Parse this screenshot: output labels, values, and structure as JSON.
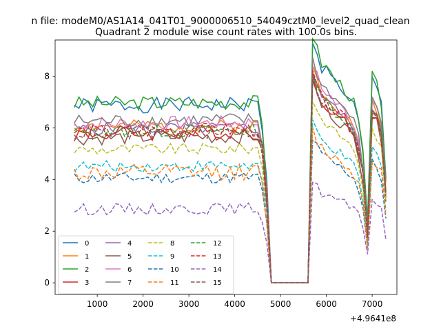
{
  "chart_data": {
    "type": "line",
    "suptitle": "n file: modeM0/AS1A14_041T01_9000006510_54049cztM0_level2_quad_clean",
    "title": "Quadrant 2 module wise count rates with 100.0s bins.",
    "xlabel": "",
    "ylabel": "",
    "x_offset_label": "+4.9641e8",
    "xlim": [
      80,
      7540
    ],
    "ylim": [
      -0.45,
      9.4
    ],
    "xticks": [
      1000,
      2000,
      3000,
      4000,
      5000,
      6000,
      7000
    ],
    "yticks": [
      0,
      2,
      4,
      6,
      8
    ],
    "grid": false,
    "legend_position": "lower-left",
    "legend_columns": 4,
    "x": [
      500,
      600,
      700,
      800,
      900,
      1000,
      1100,
      1200,
      1300,
      1400,
      1500,
      1600,
      1700,
      1800,
      1900,
      2000,
      2100,
      2200,
      2300,
      2400,
      2500,
      2600,
      2700,
      2800,
      2900,
      3000,
      3100,
      3200,
      3300,
      3400,
      3500,
      3600,
      3700,
      3800,
      3900,
      4000,
      4100,
      4200,
      4300,
      4400,
      4500,
      4600,
      4700,
      4800,
      4900,
      5000,
      5100,
      5200,
      5300,
      5400,
      5500,
      5600,
      5700,
      5800,
      5900,
      6000,
      6100,
      6200,
      6300,
      6400,
      6500,
      6600,
      6700,
      6800,
      6900,
      7000,
      7100,
      7200,
      7300
    ],
    "shapes": {
      "base": [
        1,
        1,
        1,
        1,
        1,
        1,
        1,
        1,
        1,
        1,
        1,
        1,
        1,
        1,
        1,
        1,
        1,
        1,
        1,
        1,
        1,
        1,
        1,
        1,
        1,
        1,
        1,
        1,
        1,
        1,
        1,
        1,
        1,
        1,
        1,
        1,
        1,
        1,
        1,
        1,
        1,
        0.87,
        0.55,
        0,
        0,
        0,
        0,
        0,
        0,
        0,
        0,
        0,
        1.38,
        1.3,
        1.22,
        1.2,
        1.17,
        1.13,
        1.11,
        1.08,
        1.04,
        1.0,
        0.9,
        0.72,
        0.33,
        1.15,
        1.1,
        1.0,
        0.6
      ],
      "late_scale": [
        1,
        1,
        1,
        1,
        1,
        1,
        1,
        1,
        1,
        1,
        1,
        1,
        1,
        1,
        1,
        1,
        1,
        1,
        1,
        1,
        1,
        1,
        1,
        1,
        1,
        1,
        1,
        1,
        1,
        1,
        1,
        1,
        1,
        1,
        1,
        1,
        1,
        1,
        1,
        1,
        1,
        1,
        1,
        1,
        1,
        1,
        1,
        1,
        1,
        1,
        1,
        1,
        1,
        1,
        1,
        1,
        1,
        1,
        1,
        1,
        1,
        1,
        1,
        1,
        1,
        1,
        1,
        1,
        1
      ]
    },
    "series": [
      {
        "name": "0",
        "color": "#1f77b4",
        "dash": "solid",
        "level": 6.85,
        "amp": 0.3,
        "trend": 0.06,
        "seed": 1
      },
      {
        "name": "1",
        "color": "#ff7f0e",
        "dash": "solid",
        "level": 6.05,
        "amp": 0.25,
        "trend": 0.02,
        "seed": 2
      },
      {
        "name": "2",
        "color": "#2ca02c",
        "dash": "solid",
        "level": 6.95,
        "amp": 0.28,
        "trend": 0.05,
        "seed": 3
      },
      {
        "name": "3",
        "color": "#d62728",
        "dash": "solid",
        "level": 5.75,
        "amp": 0.3,
        "trend": 0.1,
        "seed": 4
      },
      {
        "name": "4",
        "color": "#9467bd",
        "dash": "solid",
        "level": 5.95,
        "amp": 0.25,
        "trend": 0.05,
        "seed": 5
      },
      {
        "name": "5",
        "color": "#8c564b",
        "dash": "solid",
        "level": 5.6,
        "amp": 0.28,
        "trend": 0.08,
        "seed": 6
      },
      {
        "name": "6",
        "color": "#e377c2",
        "dash": "solid",
        "level": 6.15,
        "amp": 0.28,
        "trend": 0.05,
        "seed": 7
      },
      {
        "name": "7",
        "color": "#7f7f7f",
        "dash": "solid",
        "level": 6.25,
        "amp": 0.28,
        "trend": 0.05,
        "seed": 8
      },
      {
        "name": "8",
        "color": "#bcbd22",
        "dash": "dashed",
        "level": 5.15,
        "amp": 0.22,
        "trend": 0.05,
        "seed": 9
      },
      {
        "name": "9",
        "color": "#17becf",
        "dash": "dashed",
        "level": 4.5,
        "amp": 0.22,
        "trend": 0.04,
        "seed": 10
      },
      {
        "name": "10",
        "color": "#1f77b4",
        "dash": "dashed",
        "level": 4.05,
        "amp": 0.22,
        "trend": 0.03,
        "seed": 11
      },
      {
        "name": "11",
        "color": "#ff7f0e",
        "dash": "dashed",
        "level": 4.25,
        "amp": 0.32,
        "trend": 0.04,
        "seed": 12
      },
      {
        "name": "12",
        "color": "#2ca02c",
        "dash": "dashed",
        "level": 5.85,
        "amp": 0.25,
        "trend": 0.05,
        "seed": 13
      },
      {
        "name": "13",
        "color": "#d62728",
        "dash": "dashed",
        "level": 5.85,
        "amp": 0.28,
        "trend": 0.07,
        "seed": 14
      },
      {
        "name": "14",
        "color": "#9467bd",
        "dash": "dashed",
        "level": 2.85,
        "amp": 0.22,
        "trend": 0.03,
        "seed": 15
      },
      {
        "name": "15",
        "color": "#8c564b",
        "dash": "dashed",
        "level": 5.8,
        "amp": 0.28,
        "trend": 0.07,
        "seed": 16
      }
    ]
  }
}
